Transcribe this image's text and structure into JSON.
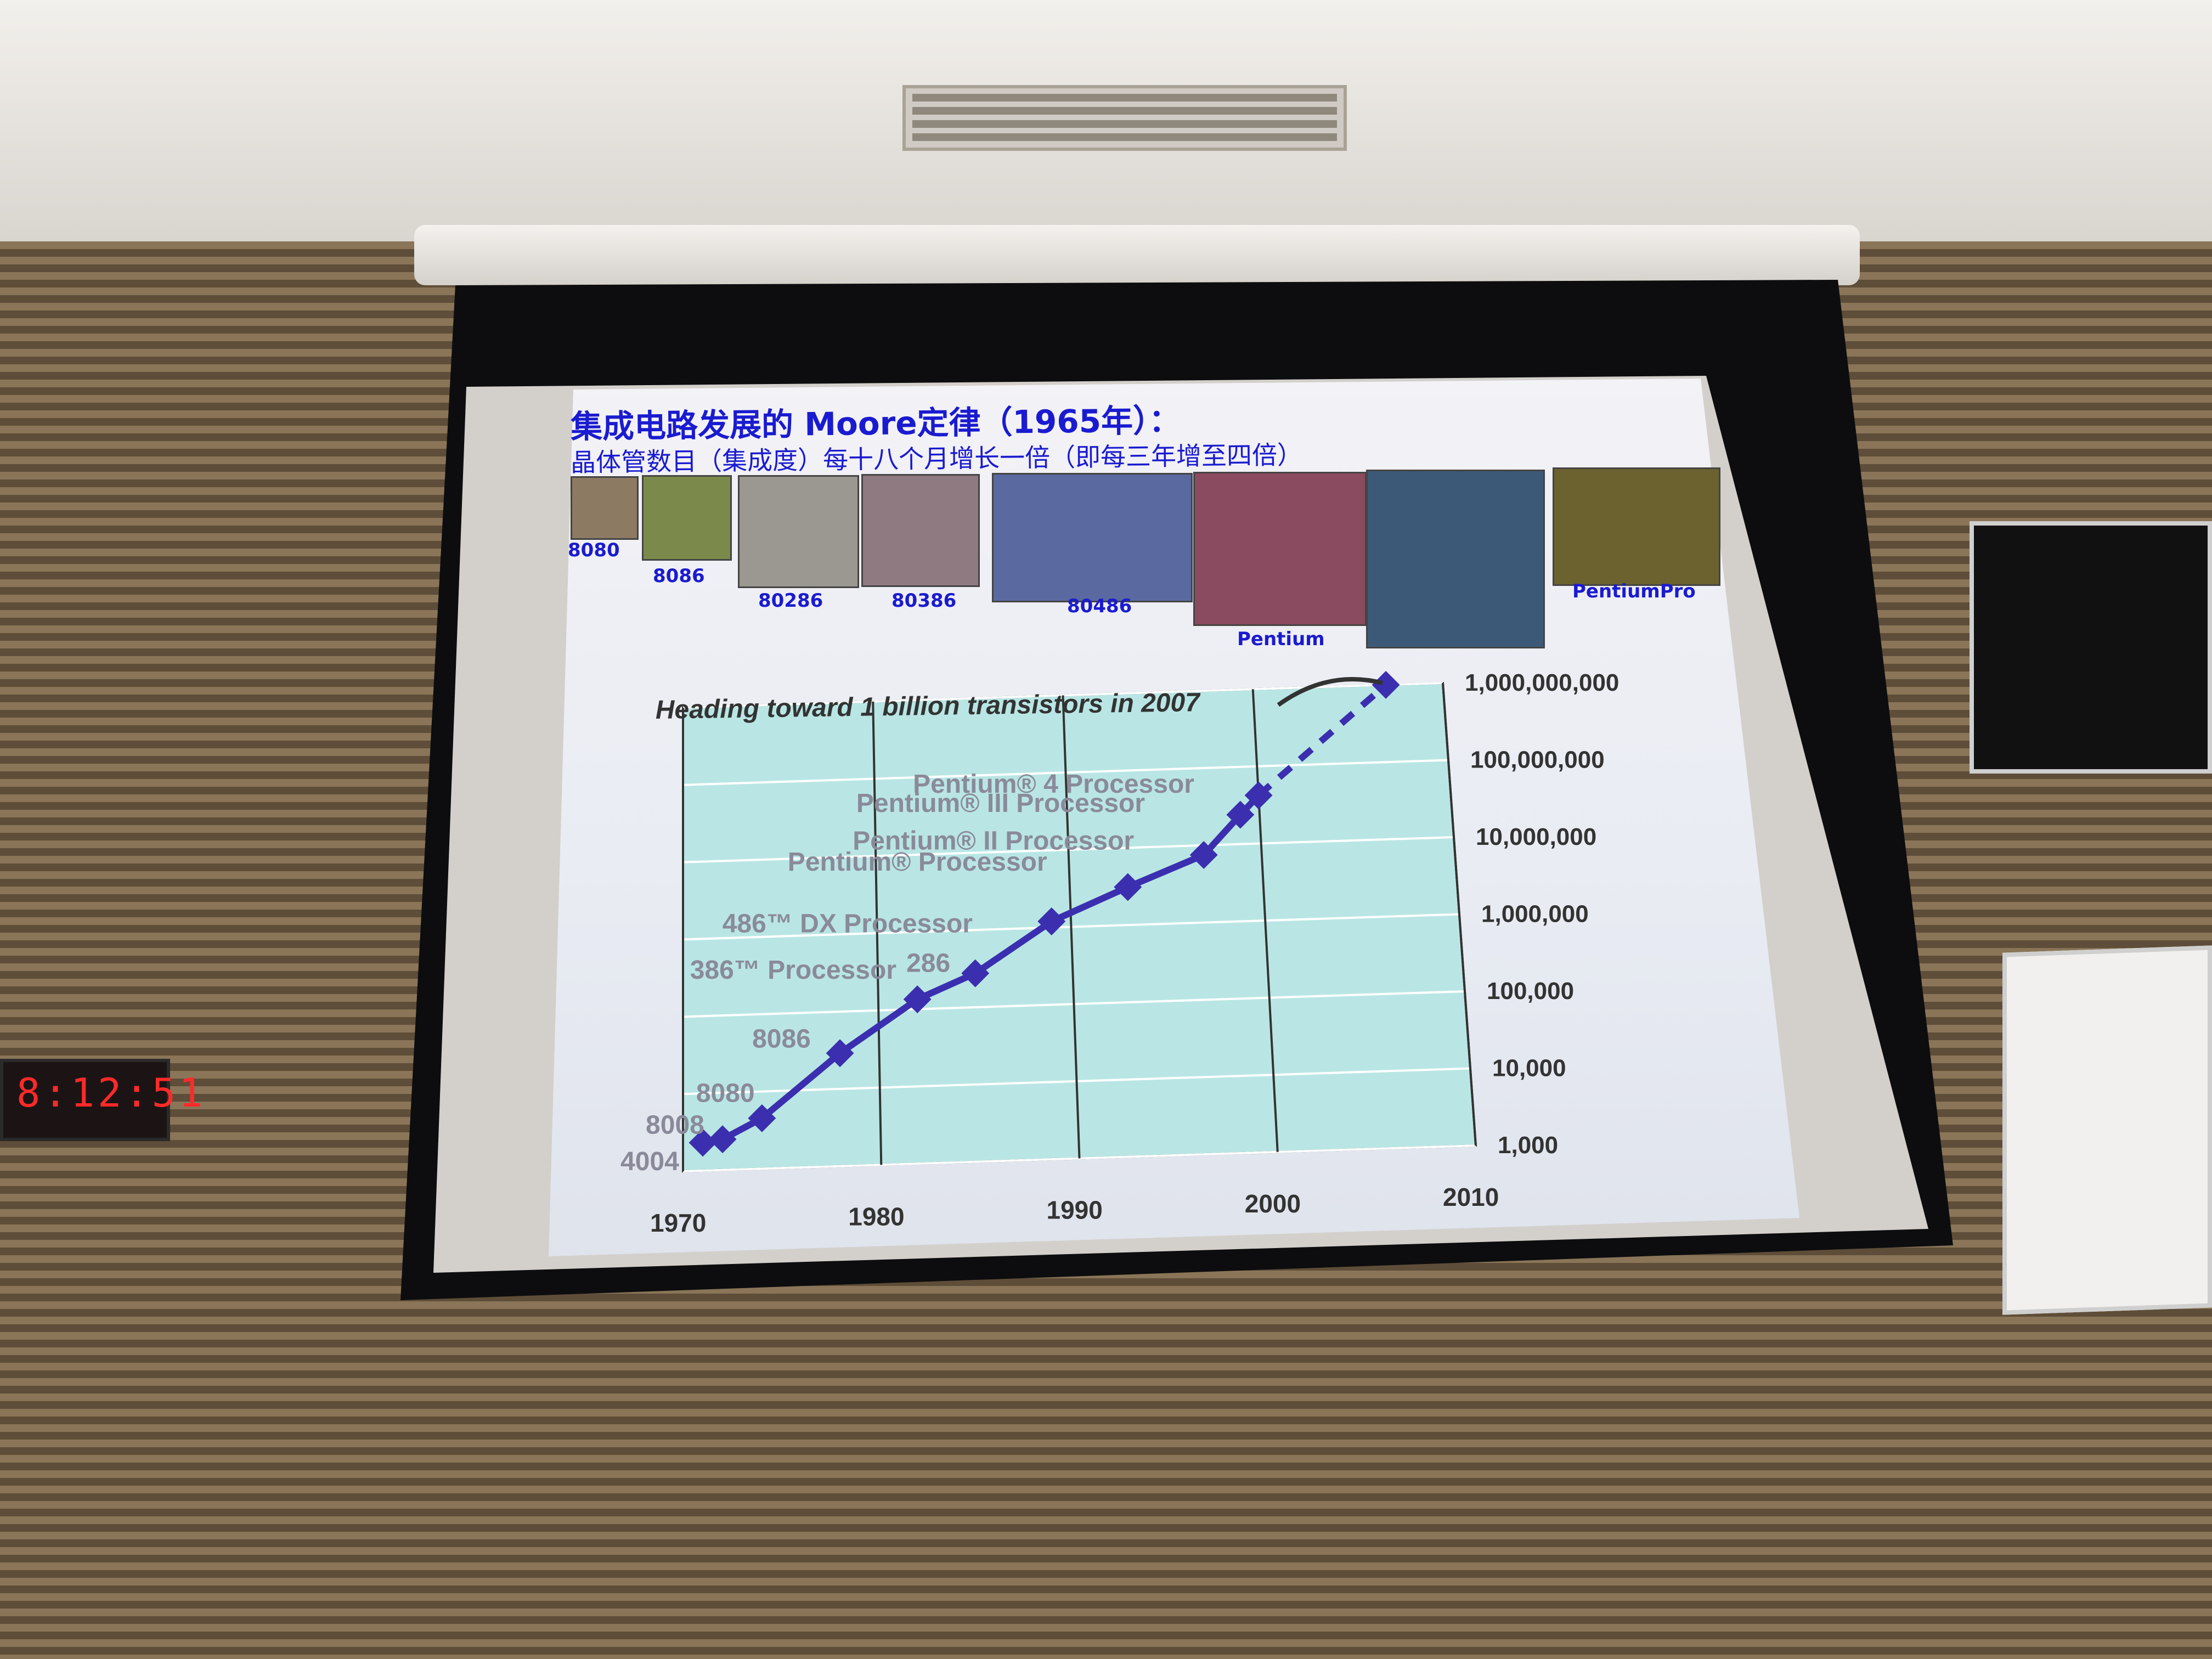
{
  "slide": {
    "title": "集成电路发展的 Moore定律（1965年）：",
    "subtitle": "晶体管数目（集成度）每十八个月增长一倍（即每三年增至四倍）",
    "chips": [
      "8080",
      "8086",
      "80286",
      "80386",
      "80486",
      "Pentium",
      "PentiumPro"
    ]
  },
  "clock": {
    "time": "8:12:51"
  },
  "chart_data": {
    "type": "line",
    "title": "",
    "annotation": "Heading toward 1 billion transistors in 2007",
    "xlabel": "",
    "ylabel": "",
    "yscale": "log",
    "xlim": [
      1970,
      2010
    ],
    "ylim": [
      1000,
      1000000000
    ],
    "x_ticks": [
      "1970",
      "1980",
      "1990",
      "2000",
      "2010"
    ],
    "y_ticks": [
      "1,000",
      "10,000",
      "100,000",
      "1,000,000",
      "10,000,000",
      "100,000,000",
      "1,000,000,000"
    ],
    "y_tick_values": [
      1000,
      10000,
      100000,
      1000000,
      10000000,
      100000000,
      1000000000
    ],
    "grid": true,
    "series": [
      {
        "values_x": [
          1971,
          1972,
          1974,
          1978,
          1982,
          1985,
          1989,
          1993,
          1997,
          1999,
          2000
        ],
        "values_y": [
          2300,
          2500,
          4500,
          29000,
          134000,
          275000,
          1200000,
          3100000,
          7500000,
          24000000,
          42000000
        ],
        "projection": {
          "from": [
            2000,
            42000000
          ],
          "to": [
            2007,
            1000000000
          ]
        }
      }
    ],
    "point_labels": [
      {
        "text": "4004",
        "x": 1971,
        "y": 2300
      },
      {
        "text": "8008",
        "x": 1972,
        "y": 2500
      },
      {
        "text": "8080",
        "x": 1974,
        "y": 4500
      },
      {
        "text": "8086",
        "x": 1978,
        "y": 29000
      },
      {
        "text": "286",
        "x": 1982,
        "y": 134000
      },
      {
        "text": "386™ Processor",
        "x": 1985,
        "y": 275000
      },
      {
        "text": "486™ DX Processor",
        "x": 1989,
        "y": 1200000
      },
      {
        "text": "Pentium® Processor",
        "x": 1993,
        "y": 3100000
      },
      {
        "text": "Pentium® II Processor",
        "x": 1997,
        "y": 7500000
      },
      {
        "text": "Pentium® III Processor",
        "x": 1999,
        "y": 24000000
      },
      {
        "text": "Pentium® 4 Processor",
        "x": 2000,
        "y": 42000000
      }
    ],
    "colors": {
      "line": "#3b2fb0",
      "plot_bg": "#b9e6e4",
      "grid": "#ffffff",
      "labels": "#8a8a9a"
    }
  }
}
